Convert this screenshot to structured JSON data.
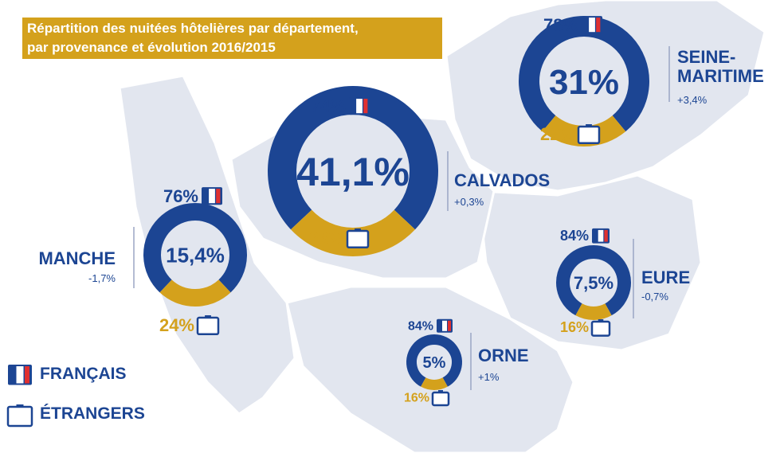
{
  "title": [
    "Répartition des nuitées hôtelières par département,",
    "par provenance et évolution 2016/2015"
  ],
  "legend": [
    {
      "name": "FRANÇAIS",
      "color": "#1c4593"
    },
    {
      "name": "ÉTRANGERS",
      "color": "#d4a11c"
    }
  ],
  "chart_data": [
    {
      "type": "donut",
      "title": "SEINE-MARITIME",
      "share": {
        "value": 31,
        "label": "31%"
      },
      "evolution": {
        "value": 3.4,
        "label": "+3,4%"
      },
      "values": [
        78,
        22
      ],
      "value_labels": [
        "78%",
        "22%"
      ]
    },
    {
      "type": "donut",
      "title": "CALVADOS",
      "share": {
        "value": 41.1,
        "label": "41,1%"
      },
      "evolution": {
        "value": 0.3,
        "label": "+0,3%"
      },
      "values": [
        74,
        26
      ],
      "value_labels": [
        "74%",
        "26%"
      ]
    },
    {
      "type": "donut",
      "title": "MANCHE",
      "share": {
        "value": 15.4,
        "label": "15,4%"
      },
      "evolution": {
        "value": -1.7,
        "label": "-1,7%"
      },
      "values": [
        76,
        24
      ],
      "value_labels": [
        "76%",
        "24%"
      ]
    },
    {
      "type": "donut",
      "title": "EURE",
      "share": {
        "value": 7.5,
        "label": "7,5%"
      },
      "evolution": {
        "value": -0.7,
        "label": "-0,7%"
      },
      "values": [
        84,
        16
      ],
      "value_labels": [
        "84%",
        "16%"
      ]
    },
    {
      "type": "donut",
      "title": "ORNE",
      "share": {
        "value": 5,
        "label": "5%"
      },
      "evolution": {
        "value": 1,
        "label": "+1%"
      },
      "values": [
        84,
        16
      ],
      "value_labels": [
        "84%",
        "16%"
      ]
    }
  ]
}
